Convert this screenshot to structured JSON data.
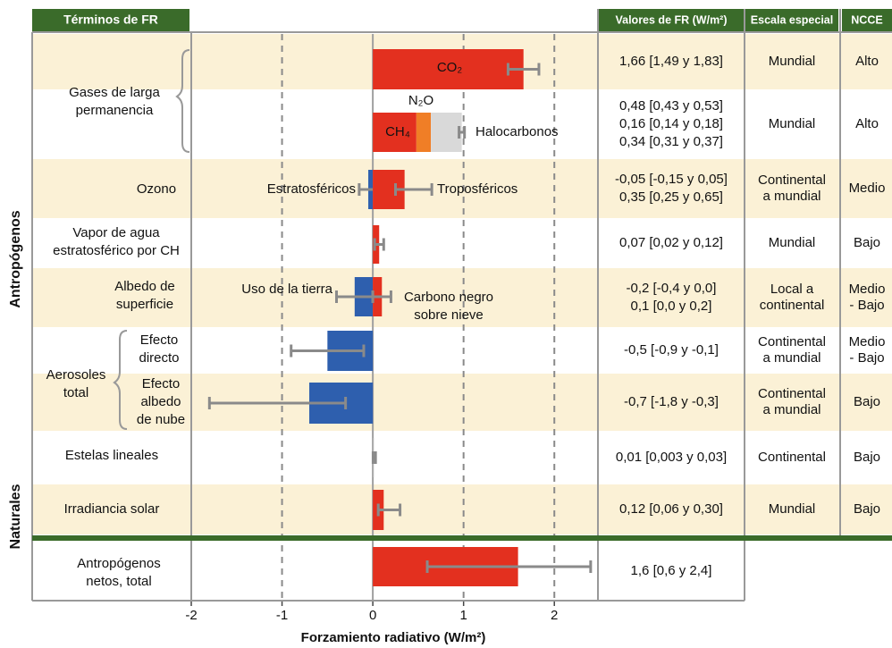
{
  "chart_data": {
    "type": "bar",
    "orientation": "horizontal",
    "header": "Términos de FR",
    "columns": [
      "Valores de FR (W/m²)",
      "Escala especial",
      "NCCE"
    ],
    "groups": [
      "Antropógenos",
      "Naturales"
    ],
    "aerosol_group": [
      "Aerosoles",
      "total"
    ],
    "xlabel": "Forzamiento radiativo (W/m²)",
    "xlim": [
      -2,
      2.5
    ],
    "xticks": [
      -2,
      -1,
      0,
      1,
      2
    ],
    "grid": true,
    "error_color": "#8a8a8a",
    "rows": [
      {
        "label": [
          "Gases de larga",
          "permanencia"
        ],
        "stacked": false,
        "bars": [
          {
            "name": [
              "CO₂"
            ],
            "value": 1.66,
            "low": 1.49,
            "high": 1.83,
            "color": "#e3301f"
          }
        ],
        "fr": [
          "1,66 [1,49 y 1,83]"
        ],
        "scale": [
          "Mundial"
        ],
        "ncce": [
          "Alto"
        ]
      },
      {
        "label": null,
        "stacked": true,
        "bars": [
          {
            "name": [
              "CH₄"
            ],
            "value": 0.48,
            "low": 0.43,
            "high": 0.53,
            "color": "#e3301f"
          },
          {
            "name": [
              "N₂O"
            ],
            "value": 0.16,
            "low": 0.14,
            "high": 0.18,
            "color": "#f07e26"
          },
          {
            "name": [
              "Halocarbonos"
            ],
            "value": 0.34,
            "low": 0.31,
            "high": 0.37,
            "color": "#d9d9d9"
          }
        ],
        "fr": [
          "0,48 [0,43 y 0,53]",
          "0,16 [0,14 y 0,18]",
          "0,34 [0,31 y 0,37]"
        ],
        "scale": [
          "Mundial"
        ],
        "ncce": [
          "Alto"
        ]
      },
      {
        "label": [
          "Ozono"
        ],
        "stacked": false,
        "bars": [
          {
            "name": [
              "Estratosféricos"
            ],
            "value": -0.05,
            "low": -0.15,
            "high": 0.05,
            "color": "#2e5fae"
          },
          {
            "name": [
              "Troposféricos"
            ],
            "value": 0.35,
            "low": 0.25,
            "high": 0.65,
            "color": "#e3301f"
          }
        ],
        "fr": [
          "-0,05 [-0,15 y 0,05]",
          "0,35 [0,25 y 0,65]"
        ],
        "scale": [
          "Continental",
          "a mundial"
        ],
        "ncce": [
          "Medio"
        ]
      },
      {
        "label": [
          "Vapor de agua",
          "estratosférico por CH"
        ],
        "stacked": false,
        "bars": [
          {
            "name": null,
            "value": 0.07,
            "low": 0.02,
            "high": 0.12,
            "color": "#e3301f"
          }
        ],
        "fr": [
          "0,07 [0,02 y 0,12]"
        ],
        "scale": [
          "Mundial"
        ],
        "ncce": [
          "Bajo"
        ]
      },
      {
        "label": [
          "Albedo de",
          "superficie"
        ],
        "stacked": false,
        "bars": [
          {
            "name": [
              "Uso de la tierra"
            ],
            "value": -0.2,
            "low": -0.4,
            "high": 0.0,
            "color": "#2e5fae"
          },
          {
            "name": [
              "Carbono negro",
              "sobre nieve"
            ],
            "value": 0.1,
            "low": 0.0,
            "high": 0.2,
            "color": "#e3301f"
          }
        ],
        "fr": [
          "-0,2 [-0,4 y 0,0]",
          "0,1 [0,0 y 0,2]"
        ],
        "scale": [
          "Local a",
          "continental"
        ],
        "ncce": [
          "Medio",
          "- Bajo"
        ]
      },
      {
        "label": [
          "Efecto",
          "directo"
        ],
        "stacked": false,
        "bars": [
          {
            "name": null,
            "value": -0.5,
            "low": -0.9,
            "high": -0.1,
            "color": "#2e5fae"
          }
        ],
        "fr": [
          "-0,5 [-0,9 y -0,1]"
        ],
        "scale": [
          "Continental",
          "a mundial"
        ],
        "ncce": [
          "Medio",
          "- Bajo"
        ]
      },
      {
        "label": [
          "Efecto",
          "albedo",
          "de nube"
        ],
        "stacked": false,
        "bars": [
          {
            "name": null,
            "value": -0.7,
            "low": -1.8,
            "high": -0.3,
            "color": "#2e5fae"
          }
        ],
        "fr": [
          "-0,7 [-1,8 y -0,3]"
        ],
        "scale": [
          "Continental",
          "a mundial"
        ],
        "ncce": [
          "Bajo"
        ]
      },
      {
        "label": [
          "Estelas lineales"
        ],
        "stacked": false,
        "bars": [
          {
            "name": null,
            "value": 0.01,
            "low": 0.003,
            "high": 0.03,
            "color": "#b0b0b0"
          }
        ],
        "fr": [
          "0,01 [0,003 y 0,03]"
        ],
        "scale": [
          "Continental"
        ],
        "ncce": [
          "Bajo"
        ]
      },
      {
        "label": [
          "Irradiancia solar"
        ],
        "stacked": false,
        "bars": [
          {
            "name": null,
            "value": 0.12,
            "low": 0.06,
            "high": 0.3,
            "color": "#e3301f"
          }
        ],
        "fr": [
          "0,12 [0,06 y 0,30]"
        ],
        "scale": [
          "Mundial"
        ],
        "ncce": [
          "Bajo"
        ]
      },
      {
        "label": [
          "Antropógenos",
          "netos, total"
        ],
        "stacked": false,
        "bars": [
          {
            "name": null,
            "value": 1.6,
            "low": 0.6,
            "high": 2.4,
            "color": "#e3301f"
          }
        ],
        "fr": [
          "1,6 [0,6 y 2,4]"
        ],
        "scale": null,
        "ncce": null
      }
    ]
  }
}
